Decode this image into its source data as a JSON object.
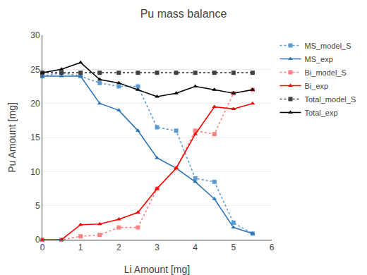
{
  "chart_data": {
    "type": "line",
    "title": "Pu mass balance",
    "xlabel": "Li Amount [mg]",
    "ylabel": "Pu Amount [mg]",
    "x": [
      0,
      0.5,
      1.0,
      1.5,
      2.0,
      2.5,
      3.0,
      3.5,
      4.0,
      4.5,
      5.0,
      5.5
    ],
    "series": [
      {
        "name": "MS_model_S",
        "color": "#5B9BD5",
        "line_style": "dotted",
        "marker": "square",
        "values": [
          24.0,
          24.5,
          24.0,
          23.0,
          22.5,
          22.5,
          16.5,
          16.0,
          9.0,
          8.5,
          2.5,
          0.9
        ]
      },
      {
        "name": "MS_exp",
        "color": "#2E75B6",
        "line_style": "solid",
        "marker": "triangle",
        "values": [
          24.0,
          24.0,
          24.0,
          20.0,
          19.0,
          16.0,
          12.0,
          10.5,
          8.5,
          6.0,
          1.8,
          0.9
        ]
      },
      {
        "name": "Bi_model_S",
        "color": "#FF8080",
        "line_style": "dotted",
        "marker": "square",
        "values": [
          0.0,
          0.0,
          0.5,
          0.7,
          1.8,
          1.8,
          7.5,
          10.5,
          16.0,
          15.5,
          21.5,
          22.0
        ]
      },
      {
        "name": "Bi_exp",
        "color": "#FF0000",
        "line_style": "solid",
        "marker": "triangle",
        "values": [
          0.0,
          0.0,
          2.2,
          2.3,
          3.0,
          4.0,
          7.5,
          10.5,
          15.5,
          19.5,
          19.2,
          20.0
        ]
      },
      {
        "name": "Total_model_S",
        "color": "#404040",
        "line_style": "dotted",
        "marker": "square",
        "values": [
          24.5,
          24.5,
          24.5,
          24.5,
          24.5,
          24.5,
          24.5,
          24.5,
          24.5,
          24.5,
          24.5,
          24.5
        ]
      },
      {
        "name": "Total_exp",
        "color": "#000000",
        "line_style": "solid",
        "marker": "triangle",
        "values": [
          24.5,
          25.0,
          26.0,
          23.5,
          23.0,
          22.0,
          21.0,
          21.5,
          22.5,
          22.0,
          21.5,
          22.0
        ]
      }
    ],
    "xlim": [
      0,
      6
    ],
    "ylim": [
      0,
      30
    ],
    "xticks": [
      0,
      1,
      2,
      3,
      4,
      5,
      6
    ],
    "yticks": [
      0,
      5,
      10,
      15,
      20,
      25,
      30
    ],
    "grid": "y",
    "legend": "right"
  }
}
